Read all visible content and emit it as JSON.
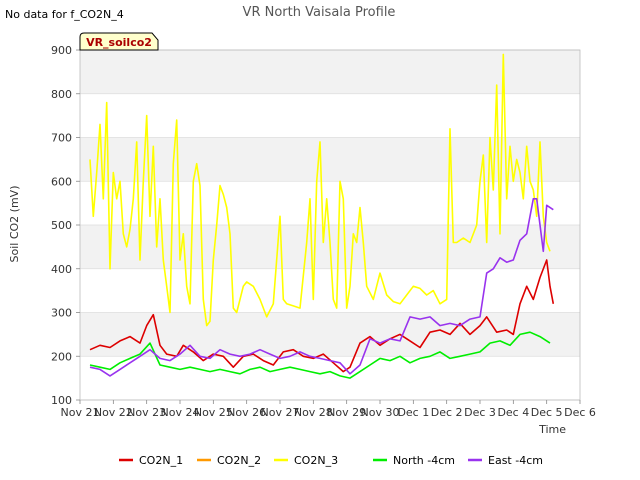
{
  "page": {
    "title": "VR North Vaisala Profile",
    "no_data_note": "No data for f_CO2N_4",
    "tag_label": "VR_soilco2"
  },
  "chart_data": {
    "type": "line",
    "title": "VR North Vaisala Profile",
    "xlabel": "Time",
    "ylabel": "Soil CO2 (mV)",
    "xlim": [
      21,
      36
    ],
    "ylim": [
      100,
      900
    ],
    "x_ticks": [
      {
        "x": 21,
        "label": "Nov 21"
      },
      {
        "x": 22,
        "label": "Nov 22"
      },
      {
        "x": 23,
        "label": "Nov 23"
      },
      {
        "x": 24,
        "label": "Nov 24"
      },
      {
        "x": 25,
        "label": "Nov 25"
      },
      {
        "x": 26,
        "label": "Nov 26"
      },
      {
        "x": 27,
        "label": "Nov 27"
      },
      {
        "x": 28,
        "label": "Nov 28"
      },
      {
        "x": 29,
        "label": "Nov 29"
      },
      {
        "x": 30,
        "label": "Nov 30"
      },
      {
        "x": 31,
        "label": "Dec 1"
      },
      {
        "x": 32,
        "label": "Dec 2"
      },
      {
        "x": 33,
        "label": "Dec 3"
      },
      {
        "x": 34,
        "label": "Dec 4"
      },
      {
        "x": 35,
        "label": "Dec 5"
      },
      {
        "x": 36,
        "label": "Dec 6"
      }
    ],
    "y_ticks": [
      100,
      200,
      300,
      400,
      500,
      600,
      700,
      800,
      900
    ],
    "grid": true,
    "legend_position": "bottom",
    "series": [
      {
        "name": "CO2N_1",
        "color": "#dd0000",
        "x": [
          21.3,
          21.6,
          21.9,
          22.2,
          22.5,
          22.8,
          23.0,
          23.2,
          23.4,
          23.6,
          23.9,
          24.1,
          24.4,
          24.7,
          25.0,
          25.3,
          25.6,
          25.9,
          26.2,
          26.5,
          26.8,
          27.1,
          27.4,
          27.7,
          28.0,
          28.3,
          28.6,
          28.9,
          29.1,
          29.4,
          29.7,
          30.0,
          30.3,
          30.6,
          30.9,
          31.2,
          31.5,
          31.8,
          32.1,
          32.4,
          32.7,
          33.0,
          33.2,
          33.5,
          33.8,
          34.0,
          34.2,
          34.4,
          34.6,
          34.8,
          35.0,
          35.1,
          35.2
        ],
        "y": [
          215,
          225,
          220,
          235,
          245,
          230,
          270,
          295,
          225,
          205,
          200,
          225,
          210,
          190,
          205,
          200,
          175,
          200,
          205,
          190,
          180,
          210,
          215,
          200,
          195,
          205,
          185,
          165,
          175,
          230,
          245,
          225,
          240,
          250,
          235,
          220,
          255,
          260,
          250,
          275,
          250,
          270,
          290,
          255,
          260,
          250,
          320,
          360,
          330,
          380,
          420,
          360,
          320
        ]
      },
      {
        "name": "CO2N_2",
        "color": "#ff9900",
        "x": [],
        "y": []
      },
      {
        "name": "CO2N_3",
        "color": "#ffff00",
        "x": [
          21.3,
          21.4,
          21.5,
          21.6,
          21.7,
          21.8,
          21.9,
          22.0,
          22.1,
          22.2,
          22.3,
          22.4,
          22.5,
          22.6,
          22.7,
          22.8,
          22.9,
          23.0,
          23.1,
          23.2,
          23.3,
          23.4,
          23.5,
          23.6,
          23.7,
          23.8,
          23.9,
          24.0,
          24.1,
          24.2,
          24.3,
          24.4,
          24.5,
          24.6,
          24.7,
          24.8,
          24.9,
          25.0,
          25.1,
          25.2,
          25.3,
          25.4,
          25.5,
          25.6,
          25.7,
          25.8,
          25.9,
          26.0,
          26.2,
          26.4,
          26.6,
          26.8,
          27.0,
          27.1,
          27.2,
          27.4,
          27.6,
          27.8,
          27.9,
          28.0,
          28.1,
          28.2,
          28.3,
          28.4,
          28.5,
          28.6,
          28.7,
          28.8,
          28.9,
          29.0,
          29.1,
          29.2,
          29.3,
          29.4,
          29.5,
          29.6,
          29.8,
          30.0,
          30.2,
          30.4,
          30.6,
          30.8,
          31.0,
          31.2,
          31.4,
          31.6,
          31.8,
          32.0,
          32.1,
          32.2,
          32.3,
          32.5,
          32.7,
          32.9,
          33.0,
          33.1,
          33.2,
          33.3,
          33.4,
          33.5,
          33.6,
          33.7,
          33.8,
          33.9,
          34.0,
          34.1,
          34.2,
          34.3,
          34.4,
          34.5,
          34.6,
          34.7,
          34.8,
          34.9,
          35.0,
          35.1
        ],
        "y": [
          650,
          520,
          620,
          730,
          560,
          780,
          400,
          620,
          560,
          600,
          480,
          450,
          490,
          560,
          690,
          420,
          600,
          750,
          520,
          680,
          450,
          560,
          420,
          360,
          300,
          640,
          740,
          420,
          480,
          360,
          320,
          600,
          640,
          590,
          330,
          270,
          280,
          420,
          500,
          590,
          570,
          540,
          480,
          310,
          300,
          330,
          360,
          370,
          360,
          330,
          290,
          320,
          520,
          330,
          320,
          315,
          310,
          460,
          560,
          330,
          600,
          690,
          460,
          560,
          460,
          330,
          310,
          600,
          560,
          310,
          360,
          480,
          460,
          540,
          460,
          360,
          330,
          390,
          340,
          325,
          320,
          340,
          360,
          355,
          340,
          350,
          320,
          330,
          720,
          460,
          460,
          470,
          460,
          500,
          600,
          660,
          460,
          700,
          580,
          820,
          480,
          890,
          560,
          680,
          600,
          650,
          620,
          560,
          680,
          600,
          580,
          520,
          690,
          520,
          460,
          440
        ]
      },
      {
        "name": "North -4cm",
        "color": "#00ee00",
        "x": [
          21.3,
          21.6,
          21.9,
          22.2,
          22.5,
          22.8,
          23.1,
          23.4,
          23.7,
          24.0,
          24.3,
          24.6,
          24.9,
          25.2,
          25.5,
          25.8,
          26.1,
          26.4,
          26.7,
          27.0,
          27.3,
          27.6,
          27.9,
          28.2,
          28.5,
          28.8,
          29.1,
          29.4,
          29.7,
          30.0,
          30.3,
          30.6,
          30.9,
          31.2,
          31.5,
          31.8,
          32.1,
          32.4,
          32.7,
          33.0,
          33.3,
          33.6,
          33.9,
          34.2,
          34.5,
          34.8,
          35.1
        ],
        "y": [
          180,
          175,
          170,
          185,
          195,
          205,
          230,
          180,
          175,
          170,
          175,
          170,
          165,
          170,
          165,
          160,
          170,
          175,
          165,
          170,
          175,
          170,
          165,
          160,
          165,
          155,
          150,
          165,
          180,
          195,
          190,
          200,
          185,
          195,
          200,
          210,
          195,
          200,
          205,
          210,
          230,
          235,
          225,
          250,
          255,
          245,
          230
        ]
      },
      {
        "name": "East -4cm",
        "color": "#9933ee",
        "x": [
          21.3,
          21.6,
          21.9,
          22.2,
          22.5,
          22.8,
          23.1,
          23.4,
          23.7,
          24.0,
          24.3,
          24.6,
          24.9,
          25.2,
          25.5,
          25.8,
          26.1,
          26.4,
          26.7,
          27.0,
          27.3,
          27.6,
          27.9,
          28.2,
          28.5,
          28.8,
          29.1,
          29.4,
          29.7,
          30.0,
          30.3,
          30.6,
          30.9,
          31.2,
          31.5,
          31.8,
          32.1,
          32.4,
          32.7,
          33.0,
          33.2,
          33.4,
          33.6,
          33.8,
          34.0,
          34.2,
          34.4,
          34.5,
          34.6,
          34.7,
          34.8,
          34.9,
          35.0,
          35.2
        ],
        "y": [
          175,
          170,
          155,
          170,
          185,
          200,
          215,
          195,
          190,
          205,
          225,
          200,
          195,
          215,
          205,
          200,
          205,
          215,
          205,
          195,
          200,
          210,
          200,
          195,
          190,
          185,
          160,
          180,
          240,
          230,
          240,
          235,
          290,
          285,
          290,
          270,
          275,
          270,
          285,
          290,
          390,
          400,
          425,
          415,
          420,
          465,
          480,
          520,
          560,
          560,
          500,
          440,
          545,
          535
        ]
      }
    ]
  }
}
